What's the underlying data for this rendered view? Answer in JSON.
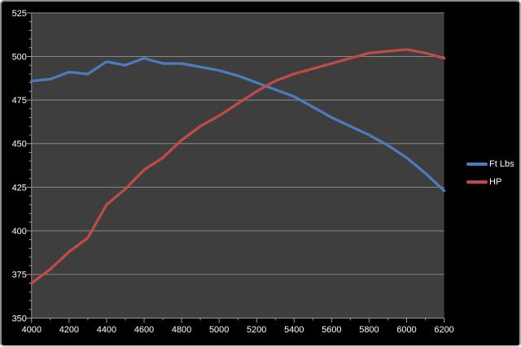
{
  "theme": {
    "background": "#000000",
    "plot_background": "#3e3e3e",
    "gridline_color": "#8a8a8a",
    "axis_color": "#9c9c9c",
    "tick_color": "#9c9c9c",
    "label_color": "#ffffff",
    "border_color": "#8e8e8e"
  },
  "chart_data": {
    "type": "line",
    "title": "",
    "xlabel": "",
    "ylabel": "",
    "x": [
      4000,
      4100,
      4200,
      4300,
      4400,
      4500,
      4600,
      4700,
      4800,
      4900,
      5000,
      5100,
      5200,
      5300,
      5400,
      5500,
      5600,
      5700,
      5800,
      5900,
      6000,
      6100,
      6200
    ],
    "series": [
      {
        "name": "Ft Lbs",
        "color": "#4a7cbe",
        "values": [
          486,
          487,
          491,
          490,
          497,
          495,
          499,
          496,
          496,
          494,
          492,
          489,
          485,
          481,
          477,
          471,
          465,
          460,
          455,
          449,
          442,
          433,
          423
        ]
      },
      {
        "name": "HP",
        "color": "#be4b48",
        "values": [
          370,
          378,
          388,
          396,
          415,
          424,
          435,
          442,
          452,
          460,
          466,
          473,
          480,
          486,
          490,
          493,
          496,
          499,
          502,
          503,
          504,
          502,
          499
        ]
      }
    ],
    "xlim": [
      4000,
      6200
    ],
    "ylim": [
      350,
      525
    ],
    "y_ticks": [
      350,
      375,
      400,
      425,
      450,
      475,
      500,
      525
    ],
    "x_tick_labels": [
      "4000",
      "4200",
      "4400",
      "4600",
      "4800",
      "5000",
      "5200",
      "5400",
      "5600",
      "5800",
      "6000",
      "6200"
    ],
    "x_major_step": 200,
    "x_minor_step": 100,
    "y_major_step": 25,
    "y_minor_step": 5,
    "grid": "horizontal-only",
    "legend_position": "right-outside",
    "notes": "Torque (Ft Lbs) and HP curves cross between 5200 and 5300 RPM at ~483; HP peak ~504 @ 6000 RPM; torque peak ~499 @ 4600 RPM"
  }
}
